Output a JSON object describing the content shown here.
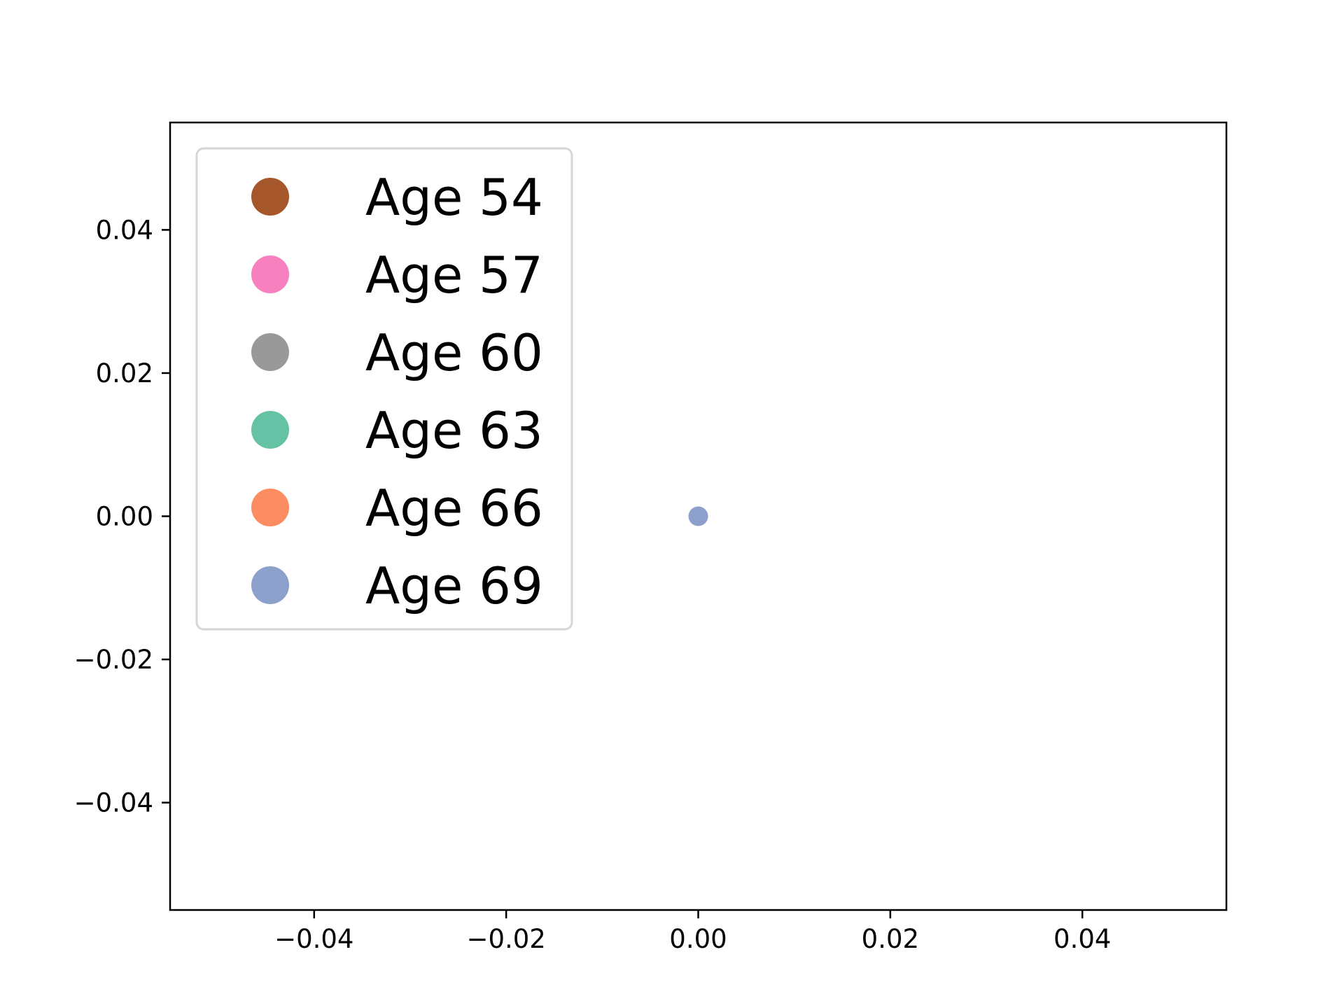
{
  "chart_data": {
    "type": "scatter",
    "title": "",
    "xlabel": "",
    "ylabel": "",
    "xlim": [
      -0.055,
      0.055
    ],
    "ylim": [
      -0.055,
      0.055
    ],
    "xticks": [
      -0.04,
      -0.02,
      0.0,
      0.02,
      0.04
    ],
    "xtick_labels": [
      "−0.04",
      "−0.02",
      "0.00",
      "0.02",
      "0.04"
    ],
    "yticks": [
      0.04,
      0.02,
      0.0,
      -0.02,
      -0.04
    ],
    "ytick_labels": [
      "0.04",
      "0.02",
      "0.00",
      "−0.02",
      "−0.04"
    ],
    "grid": false,
    "legend_position": "upper-left",
    "series": [
      {
        "name": "Age 54",
        "color": "#a6562b",
        "points": []
      },
      {
        "name": "Age 57",
        "color": "#f781bf",
        "points": []
      },
      {
        "name": "Age 60",
        "color": "#999999",
        "points": []
      },
      {
        "name": "Age 63",
        "color": "#66c2a5",
        "points": []
      },
      {
        "name": "Age 66",
        "color": "#fc8d62",
        "points": []
      },
      {
        "name": "Age 69",
        "color": "#8da0cb",
        "points": [
          [
            0.0,
            0.0
          ]
        ]
      }
    ]
  }
}
